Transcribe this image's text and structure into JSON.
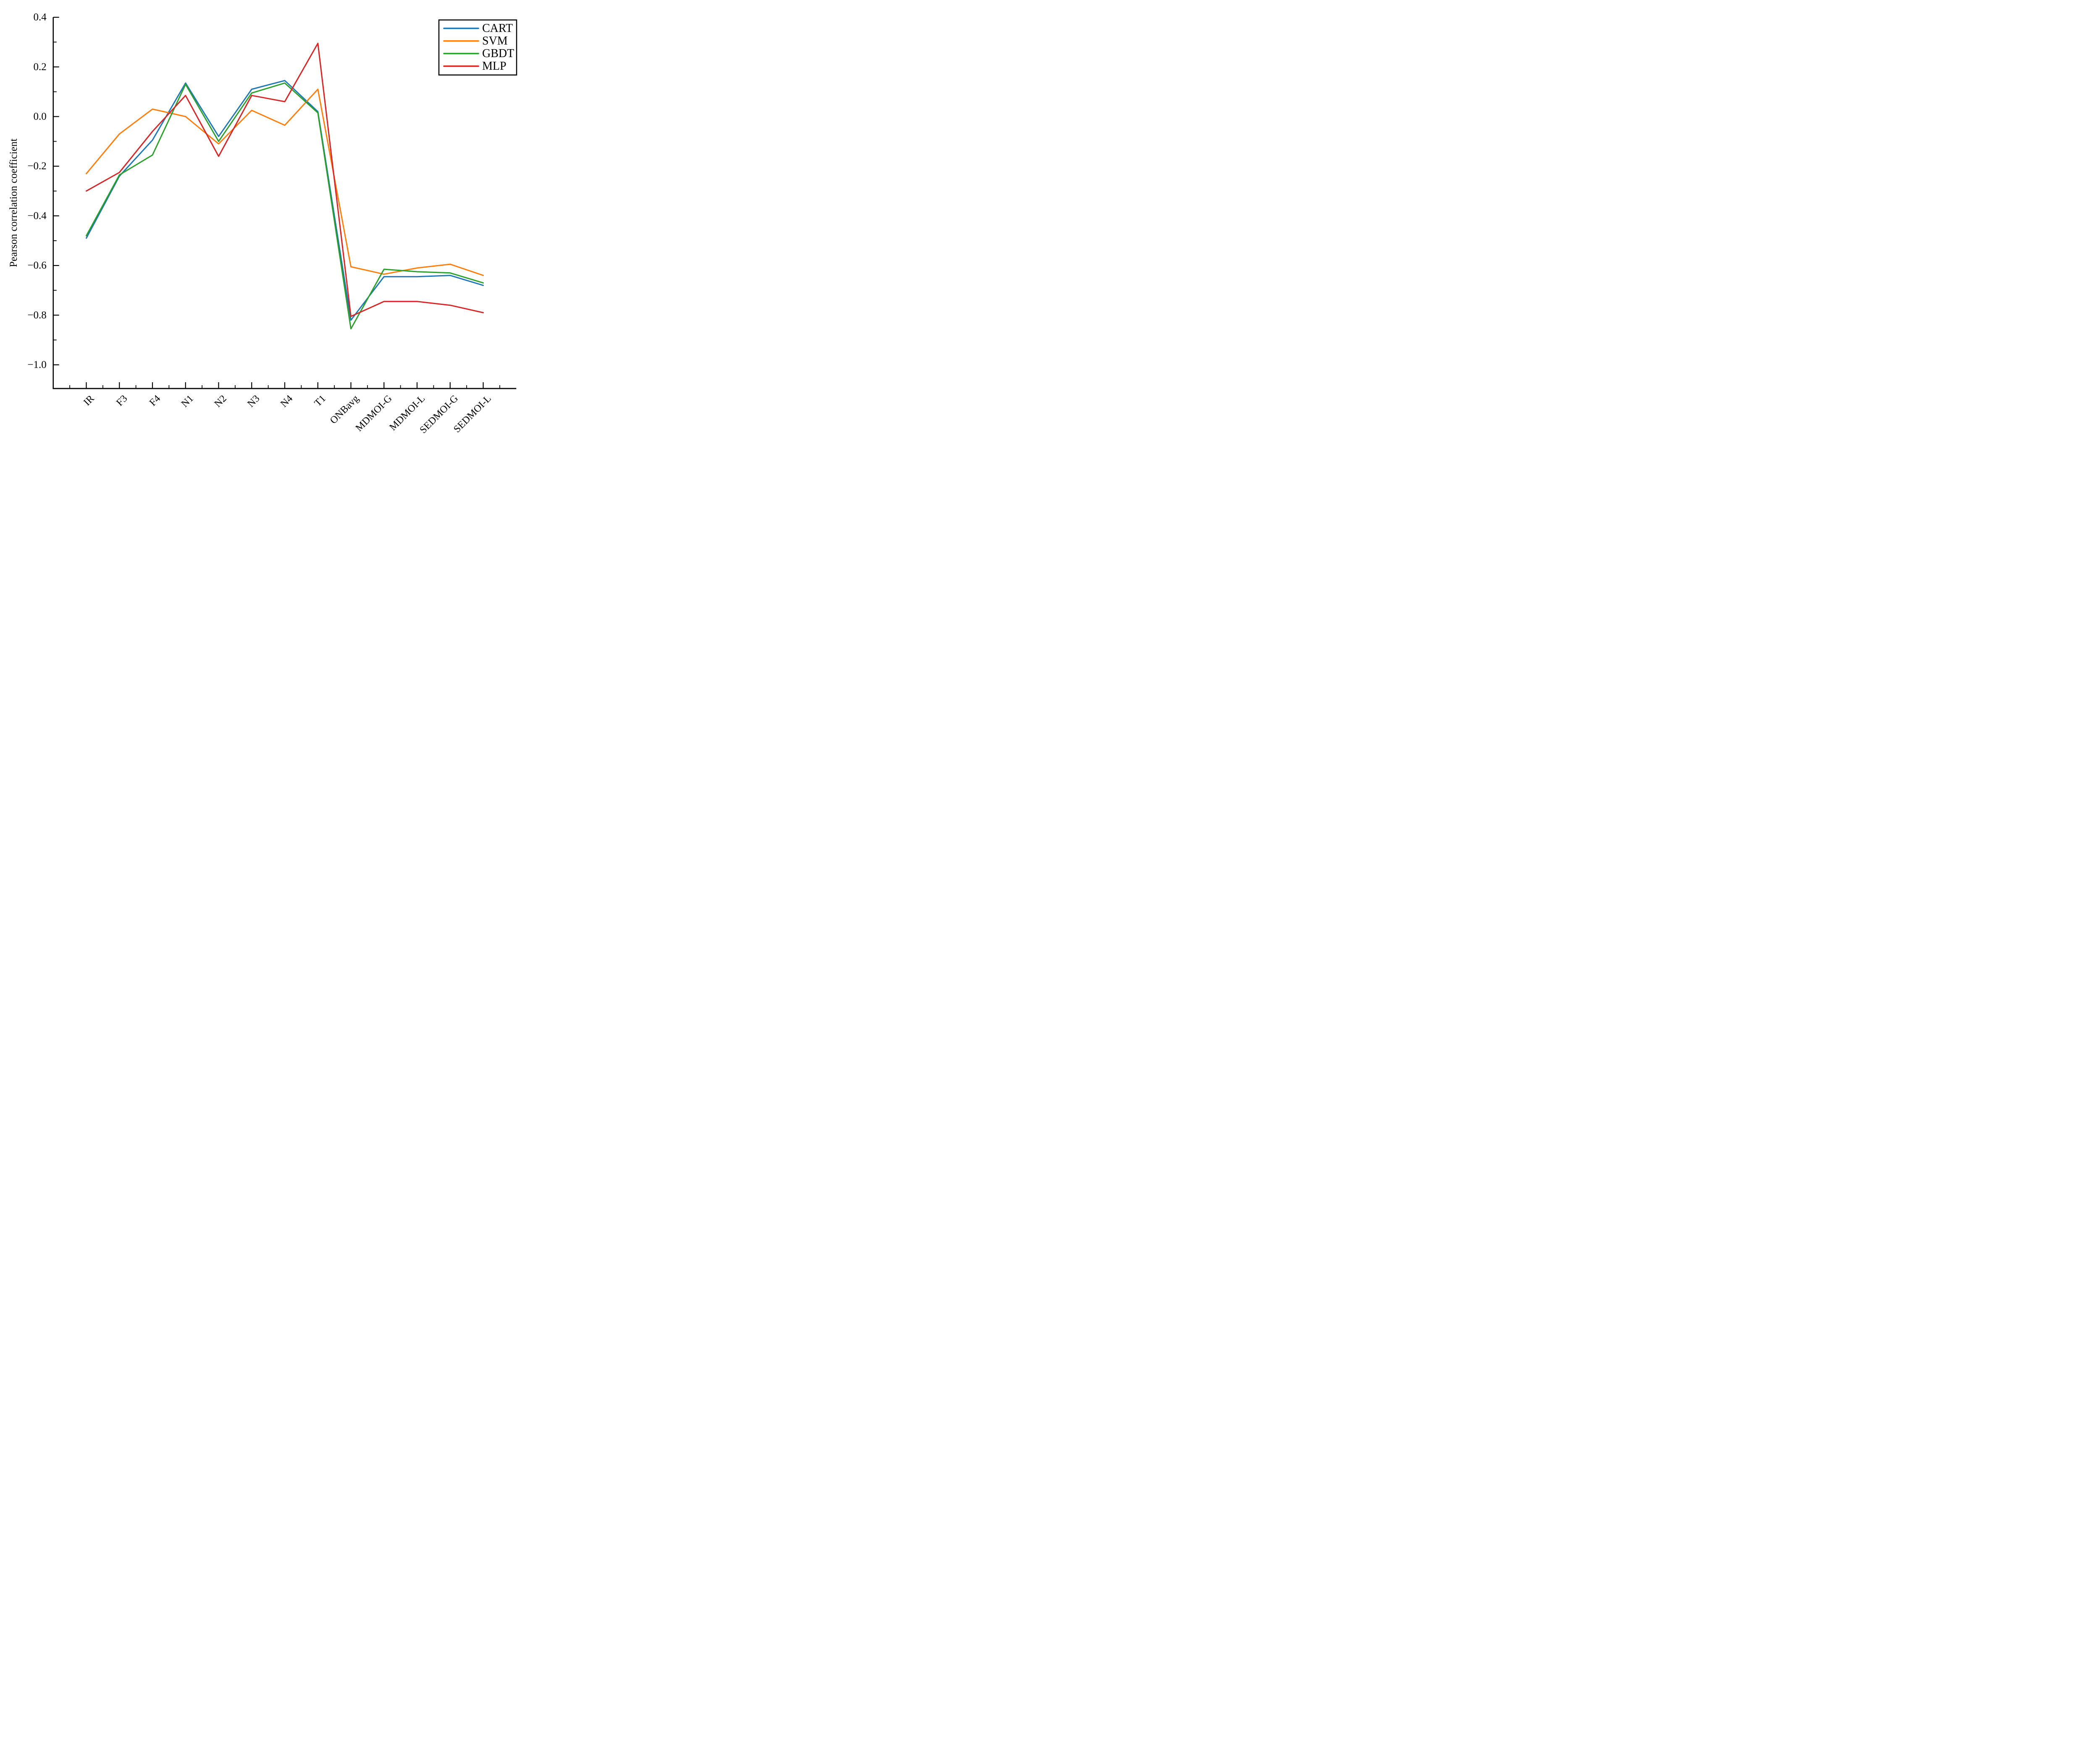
{
  "chart_data": {
    "type": "line",
    "title": "",
    "xlabel": "",
    "ylabel": "Pearson correlation coefficient",
    "categories": [
      "IR",
      "F3",
      "F4",
      "N1",
      "N2",
      "N3",
      "N4",
      "T1",
      "ONBavg",
      "MDMOI-G",
      "MDMOI-L",
      "SEDMOI-G",
      "SEDMOI-L"
    ],
    "series": [
      {
        "name": "CART",
        "color": "#1f77b4",
        "values": [
          -0.49,
          -0.24,
          -0.095,
          0.135,
          -0.08,
          0.11,
          0.145,
          0.02,
          -0.82,
          -0.645,
          -0.645,
          -0.64,
          -0.68
        ]
      },
      {
        "name": "SVM",
        "color": "#ff7f0e",
        "values": [
          -0.23,
          -0.07,
          0.03,
          0.0,
          -0.11,
          0.025,
          -0.035,
          0.11,
          -0.605,
          -0.635,
          -0.61,
          -0.595,
          -0.64
        ]
      },
      {
        "name": "GBDT",
        "color": "#2ca02c",
        "values": [
          -0.48,
          -0.235,
          -0.155,
          0.13,
          -0.1,
          0.095,
          0.135,
          0.015,
          -0.855,
          -0.615,
          -0.625,
          -0.63,
          -0.67
        ]
      },
      {
        "name": "MLP",
        "color": "#d62728",
        "values": [
          -0.3,
          -0.225,
          -0.06,
          0.085,
          -0.16,
          0.085,
          0.06,
          0.295,
          -0.805,
          -0.745,
          -0.745,
          -0.76,
          -0.79
        ]
      }
    ],
    "ylim": [
      -1.1,
      0.4
    ],
    "yticks": [
      0.4,
      0.2,
      0.0,
      -0.2,
      -0.4,
      -0.6,
      -0.8,
      -1.0
    ],
    "ytick_labels": [
      "0.4",
      "0.2",
      "0.0",
      "−0.2",
      "−0.4",
      "−0.6",
      "−0.8",
      "−1.0"
    ],
    "y_minor_ticks": [
      0.3,
      0.1,
      -0.1,
      -0.3,
      -0.5,
      -0.7,
      -0.9
    ],
    "grid": false,
    "tick_direction": "in",
    "x_tick_label_rotation_deg": 45,
    "legend": {
      "position": "upper right",
      "border_color": "#000000",
      "background": "#ffffff"
    },
    "axis_color": "#000000"
  }
}
